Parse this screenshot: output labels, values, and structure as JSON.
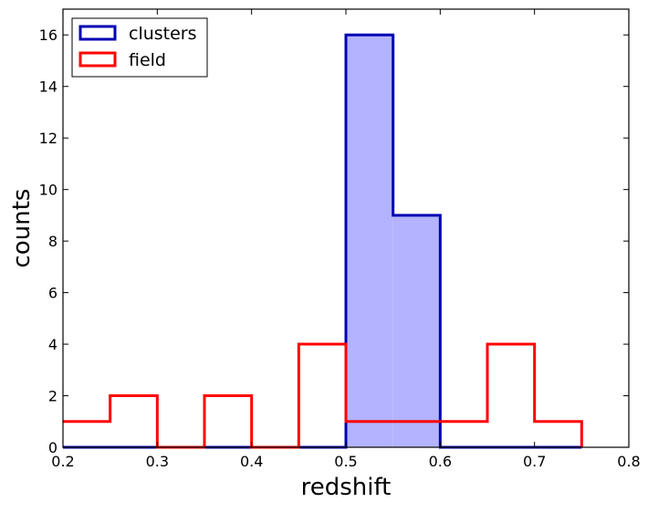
{
  "chart_data": {
    "type": "histogram",
    "xlabel": "redshift",
    "ylabel": "counts",
    "xlim": [
      0.2,
      0.8
    ],
    "ylim": [
      0,
      17
    ],
    "x_ticks": [
      0.2,
      0.3,
      0.4,
      0.5,
      0.6,
      0.7,
      0.8
    ],
    "x_tick_labels": [
      "0.2",
      "0.3",
      "0.4",
      "0.5",
      "0.6",
      "0.7",
      "0.8"
    ],
    "y_ticks": [
      0,
      2,
      4,
      6,
      8,
      10,
      12,
      14,
      16
    ],
    "y_tick_labels": [
      "0",
      "2",
      "4",
      "6",
      "8",
      "10",
      "12",
      "14",
      "16"
    ],
    "grid": false,
    "legend_position": "top-left",
    "series": [
      {
        "name": "clusters",
        "style": "filled-step",
        "edge_color": "#0000b3",
        "fill_color": "#b3b3ff",
        "bin_edges": [
          0.2,
          0.25,
          0.3,
          0.35,
          0.4,
          0.45,
          0.5,
          0.55,
          0.6,
          0.65,
          0.7,
          0.75
        ],
        "counts": [
          0,
          0,
          0,
          0,
          0,
          0,
          16,
          9,
          0,
          0,
          0
        ]
      },
      {
        "name": "field",
        "style": "step",
        "edge_color": "#ff0000",
        "bin_edges": [
          0.2,
          0.25,
          0.3,
          0.35,
          0.4,
          0.45,
          0.5,
          0.55,
          0.6,
          0.65,
          0.7,
          0.75
        ],
        "counts": [
          1,
          2,
          0,
          2,
          0,
          4,
          1,
          1,
          1,
          4,
          1
        ]
      }
    ]
  }
}
